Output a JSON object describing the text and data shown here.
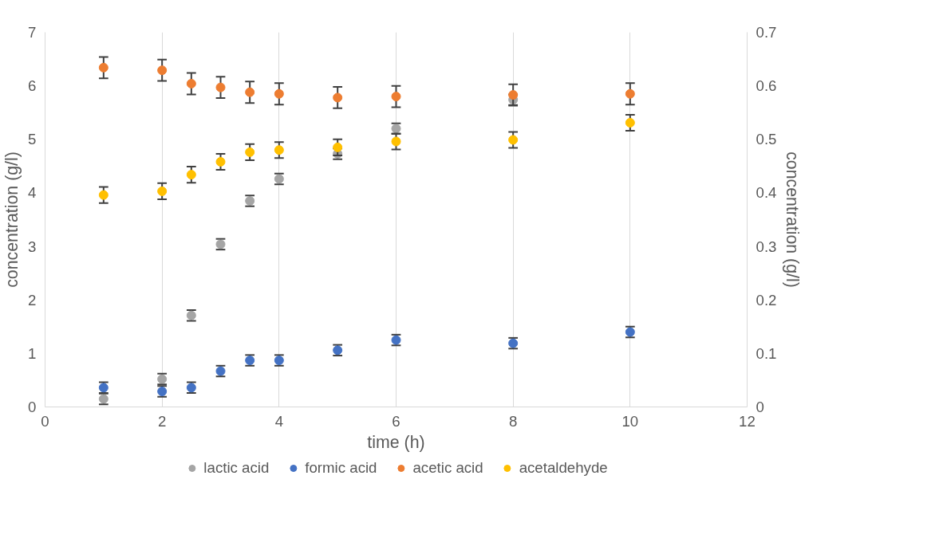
{
  "chart_data": {
    "type": "scatter",
    "xlabel": "time (h)",
    "ylabel": "concentration (g/l)",
    "y2label": "concentration (g/l)",
    "x": [
      1,
      2,
      2.5,
      3,
      3.5,
      4,
      5,
      6,
      8,
      10
    ],
    "xlim": [
      0,
      12
    ],
    "xticks": [
      0,
      2,
      4,
      6,
      8,
      10,
      12
    ],
    "ylim": [
      0,
      7
    ],
    "yticks": [
      0,
      1,
      2,
      3,
      4,
      5,
      6,
      7
    ],
    "y2lim": [
      0,
      0.7
    ],
    "y2ticks": [
      0,
      0.1,
      0.2,
      0.3,
      0.4,
      0.5,
      0.6,
      0.7
    ],
    "grid": "x",
    "legend": "bottom",
    "marker": "circle",
    "series": [
      {
        "name": "lactic acid",
        "color": "#a5a5a5",
        "values": [
          0.15,
          0.52,
          1.71,
          3.04,
          3.85,
          4.26,
          4.73,
          5.2,
          5.74,
          null
        ],
        "errors": [
          0.1,
          0.1,
          0.1,
          0.1,
          0.1,
          0.1,
          0.1,
          0.1,
          0.1,
          null
        ]
      },
      {
        "name": "formic acid",
        "color": "#4472c4",
        "values": [
          0.36,
          0.29,
          0.36,
          0.67,
          0.87,
          0.87,
          1.06,
          1.25,
          1.19,
          1.4
        ],
        "errors": [
          0.1,
          0.1,
          0.1,
          0.1,
          0.1,
          0.1,
          0.1,
          0.1,
          0.1,
          0.1
        ]
      },
      {
        "name": "acetic acid",
        "color": "#ed7d31",
        "values": [
          6.34,
          6.29,
          6.04,
          5.97,
          5.88,
          5.85,
          5.78,
          5.8,
          5.83,
          5.85
        ],
        "errors": [
          0.2,
          0.2,
          0.2,
          0.2,
          0.2,
          0.2,
          0.2,
          0.2,
          0.2,
          0.2
        ]
      },
      {
        "name": "acetaldehyde",
        "color": "#ffc000",
        "axis": "y2",
        "values": [
          0.396,
          0.403,
          0.434,
          0.458,
          0.476,
          0.48,
          0.485,
          0.496,
          0.499,
          0.531
        ],
        "errors": [
          0.015,
          0.015,
          0.015,
          0.015,
          0.015,
          0.015,
          0.015,
          0.015,
          0.015,
          0.015
        ]
      }
    ]
  }
}
